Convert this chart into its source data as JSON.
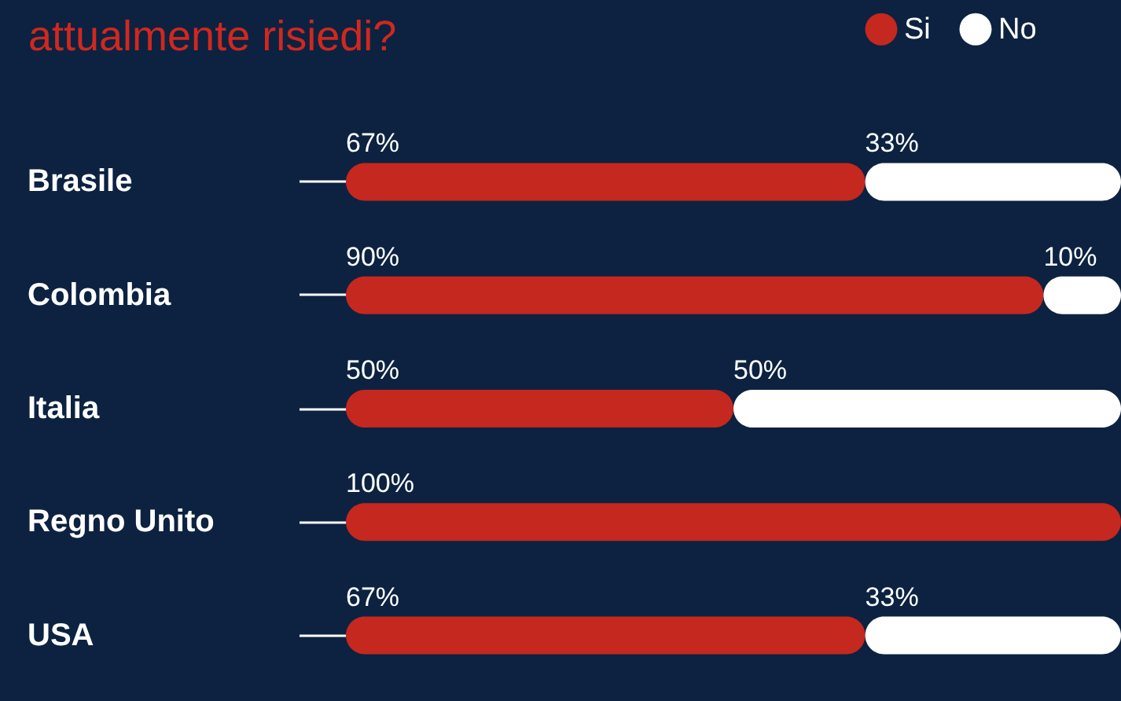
{
  "chart_data": {
    "type": "bar",
    "orientation": "horizontal",
    "stacked": true,
    "title": "attualmente risiedi?",
    "categories": [
      "Brasile",
      "Colombia",
      "Italia",
      "Regno Unito",
      "USA"
    ],
    "series": [
      {
        "name": "Si",
        "color": "#c4281f",
        "values": [
          67,
          90,
          50,
          100,
          67
        ],
        "value_labels": [
          "67%",
          "90%",
          "50%",
          "100%",
          "67%"
        ]
      },
      {
        "name": "No",
        "color": "#ffffff",
        "values": [
          33,
          10,
          50,
          0,
          33
        ],
        "value_labels": [
          "33%",
          "10%",
          "50%",
          null,
          "33%"
        ]
      }
    ],
    "legend": "top right",
    "grid": false
  }
}
